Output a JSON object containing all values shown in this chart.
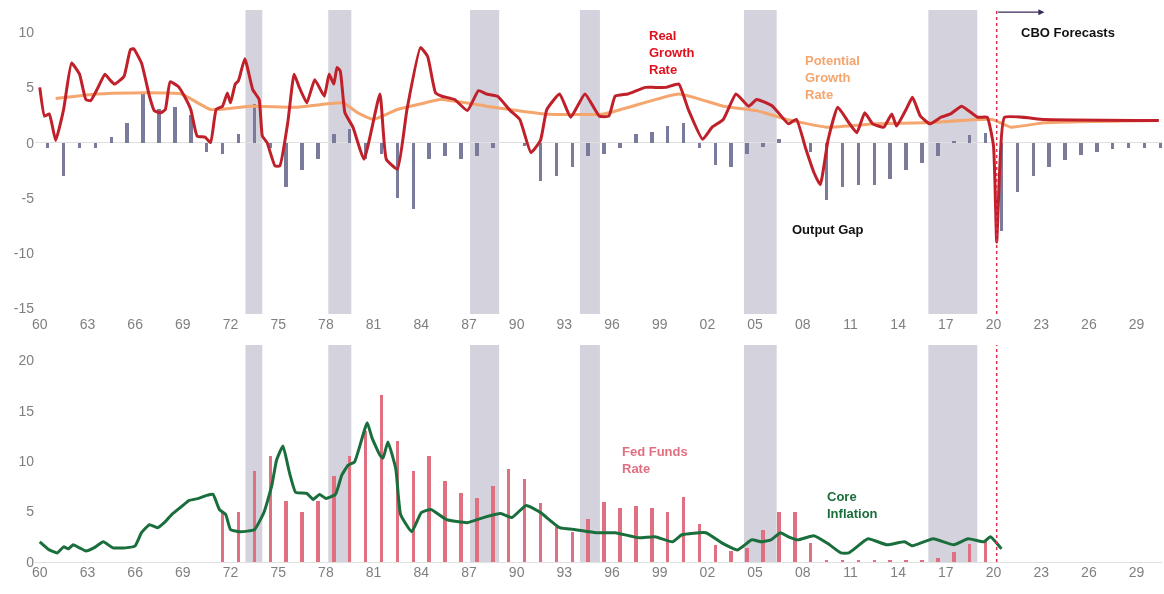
{
  "chart_data": [
    {
      "type": "line",
      "xlim": [
        1959.7,
        2030.6
      ],
      "ylim": [
        -15.5,
        12
      ],
      "xticks": [
        {
          "value": 1960,
          "label": "60"
        },
        {
          "value": 1963,
          "label": "63"
        },
        {
          "value": 1966,
          "label": "66"
        },
        {
          "value": 1969,
          "label": "69"
        },
        {
          "value": 1972,
          "label": "72"
        },
        {
          "value": 1975,
          "label": "75"
        },
        {
          "value": 1978,
          "label": "78"
        },
        {
          "value": 1981,
          "label": "81"
        },
        {
          "value": 1984,
          "label": "84"
        },
        {
          "value": 1987,
          "label": "87"
        },
        {
          "value": 1990,
          "label": "90"
        },
        {
          "value": 1993,
          "label": "93"
        },
        {
          "value": 1996,
          "label": "96"
        },
        {
          "value": 1999,
          "label": "99"
        },
        {
          "value": 2002,
          "label": "02"
        },
        {
          "value": 2005,
          "label": "05"
        },
        {
          "value": 2008,
          "label": "08"
        },
        {
          "value": 2011,
          "label": "11"
        },
        {
          "value": 2014,
          "label": "14"
        },
        {
          "value": 2017,
          "label": "17"
        },
        {
          "value": 2020,
          "label": "20"
        },
        {
          "value": 2023,
          "label": "23"
        },
        {
          "value": 2026,
          "label": "26"
        },
        {
          "value": 2029,
          "label": "29"
        }
      ],
      "yticks": [
        10,
        5,
        0,
        -5,
        -10,
        -15
      ],
      "bands": [
        {
          "axis": "x",
          "from": 1972.94,
          "to": 1974.0,
          "color": "#d4d3dd"
        },
        {
          "axis": "x",
          "from": 1978.15,
          "to": 1979.6,
          "color": "#d4d3dd"
        },
        {
          "axis": "x",
          "from": 1987.07,
          "to": 1988.9,
          "color": "#d4d3dd"
        },
        {
          "axis": "x",
          "from": 1993.98,
          "to": 1995.24,
          "color": "#d4d3dd"
        },
        {
          "axis": "x",
          "from": 2004.3,
          "to": 2006.36,
          "color": "#d4d3dd"
        },
        {
          "axis": "x",
          "from": 2015.9,
          "to": 2018.98,
          "color": "#d4d3dd"
        }
      ],
      "ref_lines": [
        {
          "axis": "x",
          "value": 2020.2,
          "color": "#e03050",
          "line_style": "dotted"
        }
      ],
      "annotations": [
        {
          "text": "CBO Forecasts",
          "x": 2020.2,
          "y": 11.8
        }
      ],
      "series": [
        {
          "name": "Output Gap",
          "type": "bar",
          "color": "#7a7a9a",
          "x": [
            1960.5,
            1961.5,
            1962.5,
            1963.5,
            1964.5,
            1965.5,
            1966.5,
            1967.5,
            1968.5,
            1969.5,
            1970.5,
            1971.5,
            1972.5,
            1973.5,
            1974.5,
            1975.5,
            1976.5,
            1977.5,
            1978.5,
            1979.5,
            1980.5,
            1981.5,
            1982.5,
            1983.5,
            1984.5,
            1985.5,
            1986.5,
            1987.5,
            1988.5,
            1989.5,
            1990.5,
            1991.5,
            1992.5,
            1993.5,
            1994.5,
            1995.5,
            1996.5,
            1997.5,
            1998.5,
            1999.5,
            2000.5,
            2001.5,
            2002.5,
            2003.5,
            2004.5,
            2005.5,
            2006.5,
            2007.5,
            2008.5,
            2009.5,
            2010.5,
            2011.5,
            2012.5,
            2013.5,
            2014.5,
            2015.5,
            2016.5,
            2017.5,
            2018.5,
            2019.5,
            2020.5,
            2021.5,
            2022.5,
            2023.5,
            2024.5,
            2025.5,
            2026.5,
            2027.5,
            2028.5,
            2029.5,
            2030.5
          ],
          "values": [
            -0.5,
            -3.0,
            -0.5,
            -0.5,
            0.5,
            1.8,
            4.5,
            3.0,
            3.2,
            2.5,
            -0.8,
            -1.0,
            0.8,
            3.5,
            -0.5,
            -4.0,
            -2.5,
            -1.5,
            0.8,
            1.2,
            -1.5,
            -1.0,
            -5.0,
            -6.0,
            -1.5,
            -1.2,
            -1.5,
            -1.2,
            -0.5,
            0.0,
            -0.3,
            -3.5,
            -3.0,
            -2.2,
            -1.2,
            -1.0,
            -0.5,
            0.8,
            1.0,
            1.5,
            1.8,
            -0.5,
            -2.0,
            -2.2,
            -1.0,
            -0.4,
            0.3,
            0.0,
            -0.8,
            -5.2,
            -4.0,
            -3.8,
            -3.8,
            -3.3,
            -2.5,
            -1.8,
            -1.2,
            0.1,
            0.7,
            0.9,
            -8.0,
            -4.5,
            -3.0,
            -2.2,
            -1.6,
            -1.1,
            -0.8,
            -0.6,
            -0.5,
            -0.5,
            -0.5
          ]
        },
        {
          "name": "Potential\nGrowth\nRate",
          "color": "#f5a56e",
          "x": [
            1961.0,
            1963.6,
            1965.7,
            1968.9,
            1970.75,
            1973.3,
            1976.2,
            1979.1,
            1980.0,
            1981.0,
            1982.5,
            1983.95,
            1985.2,
            1988.1,
            1991.7,
            1995.5,
            2000.2,
            2003.0,
            2005.1,
            2007.0,
            2009.5,
            2012.6,
            2015.8,
            2019.9,
            2021.1,
            2023.2,
            2030.4
          ],
          "values": [
            4.0,
            4.4,
            4.5,
            4.4,
            3.0,
            3.3,
            3.2,
            3.6,
            2.7,
            2.1,
            3.0,
            3.5,
            3.9,
            3.3,
            2.6,
            2.6,
            4.4,
            3.3,
            2.9,
            2.1,
            1.4,
            1.7,
            1.8,
            2.1,
            1.4,
            1.8,
            2.0
          ]
        },
        {
          "name": "Real\nGrowth\nRate",
          "color": "#c0202a",
          "x": [
            1960.0,
            1960.3,
            1960.6,
            1961.0,
            1961.5,
            1962.0,
            1962.5,
            1962.9,
            1963.2,
            1963.6,
            1964.1,
            1964.4,
            1964.7,
            1965.3,
            1965.7,
            1965.9,
            1966.4,
            1966.9,
            1967.2,
            1967.6,
            1967.9,
            1968.2,
            1968.7,
            1969.1,
            1969.5,
            1969.9,
            1970.4,
            1970.75,
            1971.1,
            1971.5,
            1971.8,
            1972.0,
            1972.3,
            1972.5,
            1972.9,
            1973.4,
            1973.8,
            1974.0,
            1974.3,
            1974.8,
            1975.1,
            1975.6,
            1976.0,
            1976.3,
            1976.8,
            1977.3,
            1977.9,
            1978.2,
            1978.5,
            1978.7,
            1978.9,
            1979.2,
            1979.7,
            1980.4,
            1981.4,
            1981.8,
            1982.5,
            1983.1,
            1983.95,
            1984.4,
            1984.9,
            1985.3,
            1986.1,
            1986.9,
            1987.6,
            1988.1,
            1988.8,
            1989.6,
            1990.2,
            1990.9,
            1991.5,
            1991.9,
            1992.7,
            1993.4,
            1994.3,
            1995.2,
            1995.8,
            1996.2,
            1997.0,
            1998.1,
            1998.7,
            1999.4,
            2000.2,
            2000.8,
            2001.7,
            2002.3,
            2003.0,
            2003.8,
            2004.6,
            2005.1,
            2006.1,
            2007.1,
            2007.6,
            2008.2,
            2008.7,
            2009.1,
            2009.6,
            2010.2,
            2010.9,
            2011.4,
            2011.9,
            2012.4,
            2013.1,
            2013.6,
            2013.9,
            2014.5,
            2014.9,
            2015.4,
            2016.0,
            2016.7,
            2017.3,
            2018.0,
            2019.0,
            2019.6,
            2020.0,
            2020.2,
            2020.4,
            2020.7,
            2023.2,
            2030.4
          ],
          "values": [
            5.0,
            2.4,
            2.6,
            0.2,
            3.0,
            7.2,
            6.2,
            3.9,
            3.8,
            4.8,
            6.2,
            5.7,
            5.3,
            6.0,
            8.4,
            8.5,
            7.2,
            4.2,
            2.9,
            2.7,
            3.0,
            5.5,
            5.1,
            4.2,
            3.0,
            0.6,
            0.5,
            0.0,
            3.0,
            3.3,
            4.5,
            3.6,
            5.3,
            5.6,
            7.6,
            4.8,
            3.9,
            0.6,
            0.0,
            -2.1,
            -2.1,
            1.8,
            6.2,
            5.1,
            3.6,
            5.7,
            4.2,
            6.2,
            5.3,
            6.8,
            6.5,
            2.7,
            1.4,
            -1.5,
            4.4,
            -1.5,
            -2.4,
            3.0,
            8.6,
            7.8,
            4.5,
            4.2,
            3.9,
            2.9,
            4.7,
            4.4,
            4.2,
            2.9,
            2.1,
            -0.9,
            0.2,
            3.0,
            4.4,
            2.3,
            4.4,
            2.4,
            2.4,
            4.2,
            4.4,
            5.0,
            5.0,
            5.0,
            5.3,
            3.0,
            0.3,
            1.4,
            2.1,
            4.4,
            3.3,
            3.9,
            3.3,
            1.7,
            2.1,
            -0.6,
            -2.7,
            -3.8,
            0.3,
            3.2,
            1.8,
            0.9,
            2.7,
            1.7,
            1.4,
            2.6,
            1.5,
            3.0,
            4.1,
            2.4,
            1.7,
            2.3,
            2.6,
            3.3,
            2.3,
            2.3,
            -0.3,
            -9.0,
            -2.1,
            2.3,
            2.1,
            2.0
          ]
        }
      ]
    },
    {
      "type": "line",
      "xlim": [
        1959.7,
        2030.6
      ],
      "ylim": [
        0,
        21.5
      ],
      "xticks": [
        {
          "value": 1960,
          "label": "60"
        },
        {
          "value": 1963,
          "label": "63"
        },
        {
          "value": 1966,
          "label": "66"
        },
        {
          "value": 1969,
          "label": "69"
        },
        {
          "value": 1972,
          "label": "72"
        },
        {
          "value": 1975,
          "label": "75"
        },
        {
          "value": 1978,
          "label": "78"
        },
        {
          "value": 1981,
          "label": "81"
        },
        {
          "value": 1984,
          "label": "84"
        },
        {
          "value": 1987,
          "label": "87"
        },
        {
          "value": 1990,
          "label": "90"
        },
        {
          "value": 1993,
          "label": "93"
        },
        {
          "value": 1996,
          "label": "96"
        },
        {
          "value": 1999,
          "label": "99"
        },
        {
          "value": 2002,
          "label": "02"
        },
        {
          "value": 2005,
          "label": "05"
        },
        {
          "value": 2008,
          "label": "08"
        },
        {
          "value": 2011,
          "label": "11"
        },
        {
          "value": 2014,
          "label": "14"
        },
        {
          "value": 2017,
          "label": "17"
        },
        {
          "value": 2020,
          "label": "20"
        },
        {
          "value": 2023,
          "label": "23"
        },
        {
          "value": 2026,
          "label": "26"
        },
        {
          "value": 2029,
          "label": "29"
        }
      ],
      "yticks": [
        0,
        5,
        10,
        15,
        20
      ],
      "bands": [
        {
          "axis": "x",
          "from": 1972.94,
          "to": 1974.0,
          "color": "#d4d3dd"
        },
        {
          "axis": "x",
          "from": 1978.15,
          "to": 1979.6,
          "color": "#d4d3dd"
        },
        {
          "axis": "x",
          "from": 1987.07,
          "to": 1988.9,
          "color": "#d4d3dd"
        },
        {
          "axis": "x",
          "from": 1993.98,
          "to": 1995.24,
          "color": "#d4d3dd"
        },
        {
          "axis": "x",
          "from": 2004.3,
          "to": 2006.36,
          "color": "#d4d3dd"
        },
        {
          "axis": "x",
          "from": 2015.9,
          "to": 2018.98,
          "color": "#d4d3dd"
        }
      ],
      "ref_lines": [
        {
          "axis": "x",
          "value": 2020.2,
          "color": "#e03050",
          "line_style": "dotted"
        }
      ],
      "series": [
        {
          "name": "Fed Funds\nRate",
          "type": "bar",
          "color": "#e07080",
          "x": [
            1971.5,
            1972.5,
            1973.5,
            1974.5,
            1975.5,
            1976.5,
            1977.5,
            1978.5,
            1979.5,
            1980.5,
            1981.5,
            1982.5,
            1983.5,
            1984.5,
            1985.5,
            1986.5,
            1987.5,
            1988.5,
            1989.5,
            1990.5,
            1991.5,
            1992.5,
            1993.5,
            1994.5,
            1995.5,
            1996.5,
            1997.5,
            1998.5,
            1999.5,
            2000.5,
            2001.5,
            2002.5,
            2003.5,
            2004.5,
            2005.5,
            2006.5,
            2007.5,
            2008.5,
            2009.5,
            2010.5,
            2011.5,
            2012.5,
            2013.5,
            2014.5,
            2015.5,
            2016.5,
            2017.5,
            2018.5,
            2019.5
          ],
          "values": [
            5.0,
            5.0,
            9.0,
            10.5,
            6.0,
            5.0,
            6.0,
            8.5,
            10.5,
            13.0,
            16.5,
            12.0,
            9.0,
            10.5,
            8.0,
            6.8,
            6.3,
            7.5,
            9.2,
            8.2,
            5.8,
            3.5,
            3.0,
            4.3,
            5.9,
            5.4,
            5.5,
            5.4,
            5.0,
            6.4,
            3.8,
            1.7,
            1.1,
            1.4,
            3.2,
            5.0,
            5.0,
            1.9,
            0.1,
            0.1,
            0.1,
            0.1,
            0.1,
            0.1,
            0.1,
            0.4,
            1.0,
            1.8,
            2.1
          ]
        },
        {
          "name": "Core\nInflation",
          "color": "#1a6e3c",
          "x": [
            1960.0,
            1960.6,
            1961.1,
            1961.5,
            1961.8,
            1962.1,
            1962.5,
            1962.9,
            1963.4,
            1964.0,
            1964.6,
            1965.4,
            1966.0,
            1966.4,
            1966.9,
            1967.4,
            1967.9,
            1968.3,
            1969.0,
            1969.4,
            1970.0,
            1970.5,
            1970.9,
            1971.3,
            1971.7,
            1972.0,
            1972.6,
            1973.5,
            1974.1,
            1974.6,
            1974.9,
            1975.3,
            1975.7,
            1976.1,
            1976.8,
            1977.2,
            1977.6,
            1978.0,
            1978.6,
            1979.0,
            1979.4,
            1979.8,
            1980.6,
            1980.9,
            1981.4,
            1981.6,
            1981.9,
            1982.4,
            1982.7,
            1983.4,
            1984.0,
            1984.6,
            1985.6,
            1986.9,
            1987.9,
            1989.0,
            1989.7,
            1990.6,
            1991.5,
            1992.7,
            1993.7,
            1995.0,
            1996.2,
            1997.7,
            1998.7,
            1999.8,
            2000.4,
            2001.9,
            2002.9,
            2003.9,
            2004.8,
            2005.4,
            2006.0,
            2006.6,
            2007.1,
            2007.7,
            2008.7,
            2009.6,
            2010.4,
            2010.9,
            2012.1,
            2013.3,
            2014.4,
            2014.9,
            2016.2,
            2017.5,
            2018.4,
            2019.4,
            2019.8,
            2020.5
          ],
          "values": [
            2.0,
            1.2,
            0.9,
            1.5,
            1.3,
            1.7,
            1.4,
            1.1,
            1.4,
            2.0,
            1.4,
            1.4,
            1.6,
            2.9,
            3.7,
            3.4,
            4.0,
            4.7,
            5.6,
            6.1,
            6.3,
            6.6,
            6.7,
            5.2,
            4.7,
            3.2,
            3.0,
            3.2,
            4.9,
            7.6,
            10.1,
            11.5,
            8.9,
            6.9,
            6.8,
            6.2,
            6.7,
            6.3,
            6.7,
            8.6,
            9.6,
            9.9,
            13.8,
            12.3,
            10.6,
            10.3,
            11.9,
            9.2,
            4.7,
            3.0,
            4.9,
            5.2,
            4.2,
            3.9,
            4.4,
            4.8,
            4.4,
            5.6,
            4.9,
            3.4,
            3.2,
            2.9,
            2.9,
            2.4,
            2.5,
            2.0,
            2.7,
            2.9,
            1.9,
            1.2,
            2.2,
            2.0,
            2.2,
            2.9,
            2.5,
            2.2,
            2.6,
            1.8,
            0.9,
            0.9,
            2.3,
            1.7,
            2.0,
            1.6,
            2.3,
            1.7,
            2.3,
            2.0,
            2.5,
            1.3
          ]
        }
      ]
    }
  ]
}
